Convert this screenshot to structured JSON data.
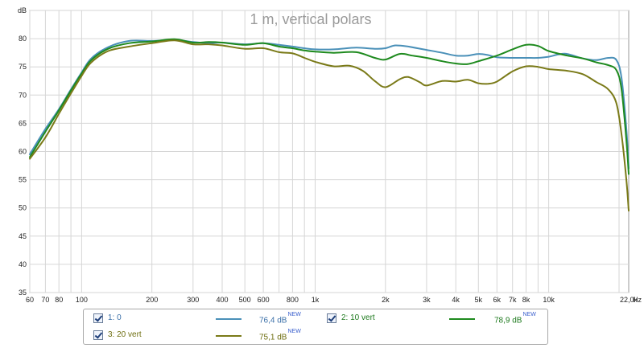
{
  "chart_data": {
    "type": "line",
    "title": "1 m, vertical polars",
    "ylabel": "dB",
    "xlabel": "Hz",
    "xscale": "log",
    "xlim": [
      60,
      22000
    ],
    "ylim": [
      35,
      85
    ],
    "grid": true,
    "xticks": [
      {
        "v": 60,
        "label": "60"
      },
      {
        "v": 70,
        "label": "70"
      },
      {
        "v": 80,
        "label": "80"
      },
      {
        "v": 100,
        "label": "100"
      },
      {
        "v": 200,
        "label": "200"
      },
      {
        "v": 300,
        "label": "300"
      },
      {
        "v": 400,
        "label": "400"
      },
      {
        "v": 500,
        "label": "500"
      },
      {
        "v": 600,
        "label": "600"
      },
      {
        "v": 800,
        "label": "800"
      },
      {
        "v": 1000,
        "label": "1k"
      },
      {
        "v": 2000,
        "label": "2k"
      },
      {
        "v": 3000,
        "label": "3k"
      },
      {
        "v": 4000,
        "label": "4k"
      },
      {
        "v": 5000,
        "label": "5k"
      },
      {
        "v": 6000,
        "label": "6k"
      },
      {
        "v": 7000,
        "label": "7k"
      },
      {
        "v": 8000,
        "label": "8k"
      },
      {
        "v": 10000,
        "label": "10k"
      },
      {
        "v": 22000,
        "label": "22,0k"
      }
    ],
    "xgrid": [
      60,
      70,
      80,
      90,
      100,
      200,
      300,
      400,
      500,
      600,
      700,
      800,
      900,
      1000,
      2000,
      3000,
      4000,
      5000,
      6000,
      7000,
      8000,
      9000,
      10000,
      20000
    ],
    "yticks": [
      35,
      40,
      45,
      50,
      55,
      60,
      65,
      70,
      75,
      80,
      85
    ],
    "ytick_labels": [
      "35",
      "40",
      "45",
      "50",
      "55",
      "60",
      "65",
      "70",
      "75",
      "80",
      "dB"
    ],
    "series": [
      {
        "name": "1: 0",
        "color": "#4a90b8",
        "points": [
          [
            60,
            59.5
          ],
          [
            70,
            64
          ],
          [
            80,
            67.5
          ],
          [
            90,
            71
          ],
          [
            100,
            74
          ],
          [
            110,
            76.5
          ],
          [
            130,
            78.5
          ],
          [
            160,
            79.6
          ],
          [
            200,
            79.6
          ],
          [
            250,
            79.8
          ],
          [
            300,
            79.4
          ],
          [
            350,
            79.2
          ],
          [
            400,
            79.3
          ],
          [
            500,
            79.0
          ],
          [
            600,
            79.2
          ],
          [
            700,
            78.9
          ],
          [
            800,
            78.6
          ],
          [
            900,
            78.3
          ],
          [
            1000,
            78.1
          ],
          [
            1200,
            78.1
          ],
          [
            1500,
            78.4
          ],
          [
            1800,
            78.2
          ],
          [
            2000,
            78.3
          ],
          [
            2200,
            78.8
          ],
          [
            2500,
            78.6
          ],
          [
            3000,
            78.0
          ],
          [
            3500,
            77.5
          ],
          [
            4000,
            77.0
          ],
          [
            4500,
            77.0
          ],
          [
            5000,
            77.3
          ],
          [
            5500,
            77.1
          ],
          [
            6000,
            76.7
          ],
          [
            7000,
            76.6
          ],
          [
            8000,
            76.6
          ],
          [
            9000,
            76.6
          ],
          [
            10000,
            76.8
          ],
          [
            11000,
            77.2
          ],
          [
            12000,
            77.3
          ],
          [
            14000,
            76.5
          ],
          [
            16000,
            76.2
          ],
          [
            18000,
            76.6
          ],
          [
            19500,
            76.2
          ],
          [
            20500,
            73.0
          ],
          [
            21500,
            64.0
          ],
          [
            22000,
            57.0
          ]
        ]
      },
      {
        "name": "2: 10 vert",
        "color": "#1e8a1e",
        "points": [
          [
            60,
            59.0
          ],
          [
            70,
            63.5
          ],
          [
            80,
            67.3
          ],
          [
            90,
            70.8
          ],
          [
            100,
            73.8
          ],
          [
            110,
            76.2
          ],
          [
            130,
            78.2
          ],
          [
            160,
            79.2
          ],
          [
            200,
            79.5
          ],
          [
            250,
            79.9
          ],
          [
            300,
            79.3
          ],
          [
            350,
            79.4
          ],
          [
            400,
            79.3
          ],
          [
            500,
            78.9
          ],
          [
            600,
            79.2
          ],
          [
            700,
            78.6
          ],
          [
            800,
            78.3
          ],
          [
            900,
            77.9
          ],
          [
            1000,
            77.7
          ],
          [
            1200,
            77.5
          ],
          [
            1500,
            77.6
          ],
          [
            1800,
            76.6
          ],
          [
            2000,
            76.3
          ],
          [
            2300,
            77.3
          ],
          [
            2600,
            77.0
          ],
          [
            3000,
            76.6
          ],
          [
            3500,
            76.0
          ],
          [
            4000,
            75.6
          ],
          [
            4500,
            75.5
          ],
          [
            5000,
            76.0
          ],
          [
            6000,
            77.0
          ],
          [
            7000,
            78.1
          ],
          [
            8000,
            78.9
          ],
          [
            9000,
            78.7
          ],
          [
            10000,
            77.8
          ],
          [
            12000,
            77.0
          ],
          [
            14000,
            76.5
          ],
          [
            16000,
            75.8
          ],
          [
            18000,
            75.3
          ],
          [
            19500,
            74.4
          ],
          [
            20500,
            71.0
          ],
          [
            21500,
            62.0
          ],
          [
            22000,
            56.0
          ]
        ]
      },
      {
        "name": "3: 20 vert",
        "color": "#7a7a18",
        "points": [
          [
            60,
            58.7
          ],
          [
            70,
            62.5
          ],
          [
            80,
            66.7
          ],
          [
            90,
            70.3
          ],
          [
            100,
            73.4
          ],
          [
            110,
            75.8
          ],
          [
            130,
            77.8
          ],
          [
            160,
            78.6
          ],
          [
            200,
            79.2
          ],
          [
            250,
            79.7
          ],
          [
            300,
            79.0
          ],
          [
            350,
            79.0
          ],
          [
            400,
            78.8
          ],
          [
            500,
            78.2
          ],
          [
            600,
            78.3
          ],
          [
            700,
            77.6
          ],
          [
            800,
            77.4
          ],
          [
            900,
            76.6
          ],
          [
            1000,
            75.9
          ],
          [
            1200,
            75.1
          ],
          [
            1400,
            75.2
          ],
          [
            1600,
            74.3
          ],
          [
            1800,
            72.5
          ],
          [
            2000,
            71.4
          ],
          [
            2300,
            72.8
          ],
          [
            2500,
            73.2
          ],
          [
            2800,
            72.3
          ],
          [
            3000,
            71.7
          ],
          [
            3500,
            72.5
          ],
          [
            4000,
            72.4
          ],
          [
            4500,
            72.7
          ],
          [
            5000,
            72.1
          ],
          [
            5500,
            72.0
          ],
          [
            6000,
            72.4
          ],
          [
            7000,
            74.2
          ],
          [
            8000,
            75.1
          ],
          [
            9000,
            75.0
          ],
          [
            10000,
            74.6
          ],
          [
            12000,
            74.3
          ],
          [
            14000,
            73.7
          ],
          [
            16000,
            72.3
          ],
          [
            18000,
            71.0
          ],
          [
            19500,
            68.5
          ],
          [
            20500,
            63.0
          ],
          [
            21500,
            55.0
          ],
          [
            22000,
            49.5
          ]
        ]
      }
    ]
  },
  "legend": {
    "items": [
      {
        "name": "1: 0",
        "value": "76,4 dB",
        "badge": "NEW",
        "color": "#4a90b8"
      },
      {
        "name": "2: 10 vert",
        "value": "78,9 dB",
        "badge": "NEW",
        "color": "#1e8a1e"
      },
      {
        "name": "3: 20 vert",
        "value": "75,1 dB",
        "badge": "NEW",
        "color": "#7a7a18"
      }
    ]
  }
}
